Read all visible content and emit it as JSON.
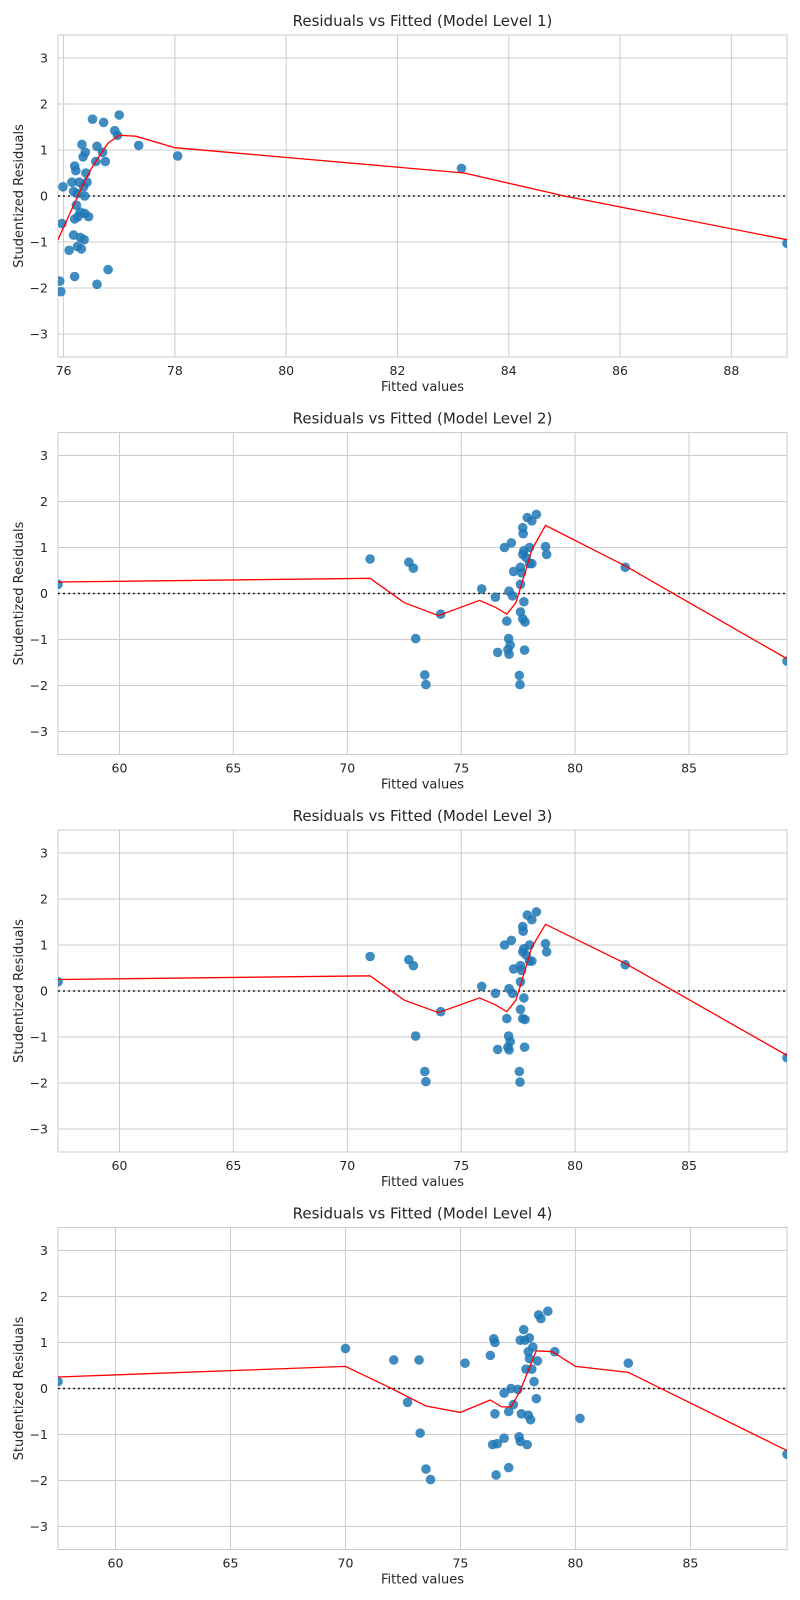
{
  "chart_data": [
    {
      "type": "scatter",
      "title": "Residuals vs Fitted (Model Level 1)",
      "xlabel": "Fitted values",
      "ylabel": "Studentized Residuals",
      "xlim": [
        75.9,
        89.0
      ],
      "ylim": [
        -3.5,
        3.5
      ],
      "xticks": [
        76,
        78,
        80,
        82,
        84,
        86,
        88
      ],
      "yticks": [
        -3,
        -2,
        -1,
        0,
        1,
        2,
        3
      ],
      "grid": true,
      "colors": {
        "points": "#1f77b4",
        "lowess": "#ff0000",
        "zero_line": "#222222"
      },
      "points": [
        [
          75.93,
          -1.85
        ],
        [
          75.95,
          -2.08
        ],
        [
          75.97,
          -0.6
        ],
        [
          75.99,
          0.2
        ],
        [
          76.1,
          -1.18
        ],
        [
          76.15,
          0.3
        ],
        [
          76.18,
          -0.85
        ],
        [
          76.18,
          0.1
        ],
        [
          76.2,
          -1.75
        ],
        [
          76.2,
          0.65
        ],
        [
          76.2,
          -0.5
        ],
        [
          76.22,
          0.55
        ],
        [
          76.23,
          -0.2
        ],
        [
          76.25,
          -1.1
        ],
        [
          76.25,
          0.05
        ],
        [
          76.26,
          -0.45
        ],
        [
          76.28,
          0.3
        ],
        [
          76.3,
          -0.9
        ],
        [
          76.3,
          -0.35
        ],
        [
          76.32,
          -1.15
        ],
        [
          76.33,
          1.12
        ],
        [
          76.35,
          0.85
        ],
        [
          76.36,
          0.2
        ],
        [
          76.37,
          -0.95
        ],
        [
          76.38,
          0.0
        ],
        [
          76.38,
          -0.38
        ],
        [
          76.39,
          0.95
        ],
        [
          76.4,
          0.5
        ],
        [
          76.42,
          0.3
        ],
        [
          76.45,
          -0.45
        ],
        [
          76.52,
          1.67
        ],
        [
          76.58,
          0.75
        ],
        [
          76.6,
          -1.92
        ],
        [
          76.6,
          1.08
        ],
        [
          76.7,
          0.95
        ],
        [
          76.72,
          1.6
        ],
        [
          76.75,
          0.75
        ],
        [
          76.8,
          -1.6
        ],
        [
          76.92,
          1.42
        ],
        [
          76.97,
          1.32
        ],
        [
          77.0,
          1.76
        ],
        [
          77.35,
          1.1
        ],
        [
          78.05,
          0.87
        ],
        [
          83.15,
          0.6
        ],
        [
          89.0,
          -1.03
        ]
      ],
      "lowess": [
        [
          75.9,
          -0.95
        ],
        [
          76.05,
          -0.55
        ],
        [
          76.2,
          -0.15
        ],
        [
          76.35,
          0.25
        ],
        [
          76.5,
          0.6
        ],
        [
          76.65,
          0.88
        ],
        [
          76.8,
          1.15
        ],
        [
          77.0,
          1.32
        ],
        [
          77.3,
          1.3
        ],
        [
          78.0,
          1.05
        ],
        [
          83.2,
          0.5
        ],
        [
          85.0,
          0.0
        ],
        [
          89.0,
          -0.95
        ]
      ]
    },
    {
      "type": "scatter",
      "title": "Residuals vs Fitted (Model Level 2)",
      "xlabel": "Fitted values",
      "ylabel": "Studentized Residuals",
      "xlim": [
        57.3,
        89.3
      ],
      "ylim": [
        -3.5,
        3.5
      ],
      "xticks": [
        60,
        65,
        70,
        75,
        80,
        85
      ],
      "yticks": [
        -3,
        -2,
        -1,
        0,
        1,
        2,
        3
      ],
      "grid": true,
      "colors": {
        "points": "#1f77b4",
        "lowess": "#ff0000",
        "zero_line": "#222222"
      },
      "points": [
        [
          57.3,
          0.2
        ],
        [
          71.0,
          0.75
        ],
        [
          72.7,
          0.68
        ],
        [
          72.9,
          0.55
        ],
        [
          73.0,
          -0.98
        ],
        [
          73.4,
          -1.77
        ],
        [
          73.45,
          -1.98
        ],
        [
          74.1,
          -0.45
        ],
        [
          75.9,
          0.1
        ],
        [
          76.5,
          -0.08
        ],
        [
          76.6,
          -1.28
        ],
        [
          76.9,
          1.0
        ],
        [
          77.0,
          -0.6
        ],
        [
          77.05,
          -1.22
        ],
        [
          77.08,
          -0.98
        ],
        [
          77.1,
          0.05
        ],
        [
          77.1,
          -1.32
        ],
        [
          77.15,
          -1.12
        ],
        [
          77.2,
          1.1
        ],
        [
          77.25,
          -0.05
        ],
        [
          77.3,
          0.48
        ],
        [
          77.55,
          -1.78
        ],
        [
          77.58,
          -1.98
        ],
        [
          77.6,
          0.2
        ],
        [
          77.6,
          0.57
        ],
        [
          77.6,
          -0.4
        ],
        [
          77.65,
          0.45
        ],
        [
          77.7,
          -0.55
        ],
        [
          77.7,
          1.43
        ],
        [
          77.7,
          0.85
        ],
        [
          77.72,
          1.3
        ],
        [
          77.75,
          0.93
        ],
        [
          77.75,
          -0.18
        ],
        [
          77.78,
          -1.23
        ],
        [
          77.8,
          -0.62
        ],
        [
          77.85,
          0.78
        ],
        [
          77.9,
          1.65
        ],
        [
          78.0,
          1.0
        ],
        [
          78.0,
          0.65
        ],
        [
          78.1,
          0.65
        ],
        [
          78.1,
          1.58
        ],
        [
          78.3,
          1.72
        ],
        [
          78.7,
          1.02
        ],
        [
          78.75,
          0.85
        ],
        [
          82.2,
          0.57
        ],
        [
          89.3,
          -1.47
        ]
      ],
      "lowess": [
        [
          57.3,
          0.25
        ],
        [
          71.0,
          0.33
        ],
        [
          72.5,
          -0.2
        ],
        [
          74.0,
          -0.48
        ],
        [
          75.8,
          -0.15
        ],
        [
          76.5,
          -0.3
        ],
        [
          77.0,
          -0.45
        ],
        [
          77.4,
          -0.2
        ],
        [
          77.8,
          0.45
        ],
        [
          78.1,
          0.95
        ],
        [
          78.7,
          1.48
        ],
        [
          82.2,
          0.6
        ],
        [
          89.3,
          -1.42
        ]
      ]
    },
    {
      "type": "scatter",
      "title": "Residuals vs Fitted (Model Level 3)",
      "xlabel": "Fitted values",
      "ylabel": "Studentized Residuals",
      "xlim": [
        57.3,
        89.3
      ],
      "ylim": [
        -3.5,
        3.5
      ],
      "xticks": [
        60,
        65,
        70,
        75,
        80,
        85
      ],
      "yticks": [
        -3,
        -2,
        -1,
        0,
        1,
        2,
        3
      ],
      "grid": true,
      "colors": {
        "points": "#1f77b4",
        "lowess": "#ff0000",
        "zero_line": "#222222"
      },
      "points": [
        [
          57.3,
          0.2
        ],
        [
          71.0,
          0.75
        ],
        [
          72.7,
          0.68
        ],
        [
          72.9,
          0.55
        ],
        [
          73.0,
          -0.98
        ],
        [
          73.4,
          -1.75
        ],
        [
          73.45,
          -1.97
        ],
        [
          74.1,
          -0.45
        ],
        [
          75.9,
          0.1
        ],
        [
          76.5,
          -0.05
        ],
        [
          76.6,
          -1.27
        ],
        [
          76.9,
          1.0
        ],
        [
          77.0,
          -0.6
        ],
        [
          77.05,
          -1.22
        ],
        [
          77.08,
          -0.98
        ],
        [
          77.1,
          0.05
        ],
        [
          77.1,
          -1.28
        ],
        [
          77.15,
          -1.1
        ],
        [
          77.2,
          1.1
        ],
        [
          77.25,
          -0.05
        ],
        [
          77.3,
          0.48
        ],
        [
          77.55,
          -1.75
        ],
        [
          77.58,
          -1.98
        ],
        [
          77.6,
          0.2
        ],
        [
          77.6,
          0.55
        ],
        [
          77.6,
          -0.4
        ],
        [
          77.65,
          0.45
        ],
        [
          77.7,
          -0.6
        ],
        [
          77.7,
          1.4
        ],
        [
          77.7,
          0.85
        ],
        [
          77.72,
          1.3
        ],
        [
          77.75,
          0.92
        ],
        [
          77.75,
          -0.15
        ],
        [
          77.78,
          -1.22
        ],
        [
          77.8,
          -0.62
        ],
        [
          77.85,
          0.78
        ],
        [
          77.9,
          1.65
        ],
        [
          78.0,
          1.0
        ],
        [
          78.0,
          0.65
        ],
        [
          78.1,
          0.65
        ],
        [
          78.1,
          1.55
        ],
        [
          78.3,
          1.72
        ],
        [
          78.7,
          1.03
        ],
        [
          78.75,
          0.85
        ],
        [
          82.2,
          0.57
        ],
        [
          89.3,
          -1.45
        ]
      ],
      "lowess": [
        [
          57.3,
          0.25
        ],
        [
          71.0,
          0.33
        ],
        [
          72.5,
          -0.2
        ],
        [
          74.0,
          -0.47
        ],
        [
          75.8,
          -0.15
        ],
        [
          76.5,
          -0.3
        ],
        [
          77.0,
          -0.45
        ],
        [
          77.4,
          -0.2
        ],
        [
          77.8,
          0.45
        ],
        [
          78.1,
          0.95
        ],
        [
          78.7,
          1.45
        ],
        [
          82.2,
          0.6
        ],
        [
          89.3,
          -1.4
        ]
      ]
    },
    {
      "type": "scatter",
      "title": "Residuals vs Fitted (Model Level 4)",
      "xlabel": "Fitted values",
      "ylabel": "Studentized Residuals",
      "xlim": [
        57.5,
        89.2
      ],
      "ylim": [
        -3.5,
        3.5
      ],
      "xticks": [
        60,
        65,
        70,
        75,
        80,
        85
      ],
      "yticks": [
        -3,
        -2,
        -1,
        0,
        1,
        2,
        3
      ],
      "grid": true,
      "colors": {
        "points": "#1f77b4",
        "lowess": "#ff0000",
        "zero_line": "#222222"
      },
      "points": [
        [
          57.5,
          0.15
        ],
        [
          70.0,
          0.87
        ],
        [
          72.1,
          0.62
        ],
        [
          72.7,
          -0.3
        ],
        [
          73.2,
          0.62
        ],
        [
          73.25,
          -0.97
        ],
        [
          73.5,
          -1.75
        ],
        [
          73.7,
          -1.98
        ],
        [
          75.2,
          0.55
        ],
        [
          76.3,
          0.72
        ],
        [
          76.4,
          -1.22
        ],
        [
          76.45,
          1.08
        ],
        [
          76.5,
          -0.55
        ],
        [
          76.5,
          1.0
        ],
        [
          76.55,
          -1.88
        ],
        [
          76.6,
          -1.2
        ],
        [
          76.9,
          -0.1
        ],
        [
          76.9,
          -1.08
        ],
        [
          77.1,
          -0.5
        ],
        [
          77.1,
          -1.72
        ],
        [
          77.2,
          0.0
        ],
        [
          77.3,
          -0.35
        ],
        [
          77.5,
          -0.02
        ],
        [
          77.55,
          -1.05
        ],
        [
          77.6,
          -1.15
        ],
        [
          77.65,
          -0.55
        ],
        [
          77.6,
          1.05
        ],
        [
          77.75,
          1.28
        ],
        [
          77.8,
          1.05
        ],
        [
          77.85,
          0.42
        ],
        [
          77.9,
          -1.22
        ],
        [
          77.95,
          -0.58
        ],
        [
          77.95,
          0.8
        ],
        [
          78.0,
          0.65
        ],
        [
          78.0,
          1.1
        ],
        [
          78.05,
          -0.68
        ],
        [
          78.1,
          0.42
        ],
        [
          78.15,
          0.9
        ],
        [
          78.2,
          0.15
        ],
        [
          78.3,
          -0.22
        ],
        [
          78.35,
          0.6
        ],
        [
          78.4,
          1.6
        ],
        [
          78.5,
          1.52
        ],
        [
          78.8,
          1.68
        ],
        [
          79.1,
          0.8
        ],
        [
          80.2,
          -0.65
        ],
        [
          82.3,
          0.55
        ],
        [
          89.2,
          -1.43
        ]
      ],
      "lowess": [
        [
          57.5,
          0.25
        ],
        [
          70.0,
          0.48
        ],
        [
          72.0,
          0.0
        ],
        [
          73.5,
          -0.38
        ],
        [
          75.0,
          -0.52
        ],
        [
          76.3,
          -0.25
        ],
        [
          76.8,
          -0.4
        ],
        [
          77.2,
          -0.4
        ],
        [
          77.6,
          -0.05
        ],
        [
          78.0,
          0.45
        ],
        [
          78.3,
          0.82
        ],
        [
          79.0,
          0.8
        ],
        [
          80.0,
          0.48
        ],
        [
          82.3,
          0.35
        ],
        [
          89.2,
          -1.35
        ]
      ]
    }
  ]
}
